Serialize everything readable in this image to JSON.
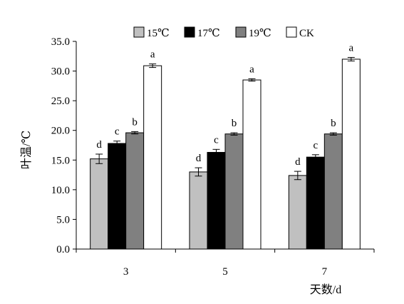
{
  "chart_data": {
    "type": "bar",
    "categories": [
      "3",
      "5",
      "7"
    ],
    "xlabel": "天数/d",
    "ylabel": "叶温/℃",
    "ylim": [
      0,
      35
    ],
    "yticks": [
      "0.0",
      "5.0",
      "10.0",
      "15.0",
      "20.0",
      "25.0",
      "30.0",
      "35.0"
    ],
    "grid": false,
    "legend_position": "top",
    "series": [
      {
        "name": "15℃",
        "color": "#c0c0c0",
        "values": [
          15.2,
          13.0,
          12.4
        ],
        "errors": [
          0.8,
          0.7,
          0.7
        ],
        "letters": [
          "d",
          "d",
          "d"
        ]
      },
      {
        "name": "17℃",
        "color": "#000000",
        "values": [
          17.8,
          16.3,
          15.5
        ],
        "errors": [
          0.4,
          0.5,
          0.4
        ],
        "letters": [
          "c",
          "c",
          "c"
        ]
      },
      {
        "name": "19℃",
        "color": "#808080",
        "values": [
          19.6,
          19.4,
          19.4
        ],
        "errors": [
          0.2,
          0.2,
          0.2
        ],
        "letters": [
          "b",
          "b",
          "b"
        ]
      },
      {
        "name": "CK",
        "color": "#ffffff",
        "values": [
          30.9,
          28.5,
          32.0
        ],
        "errors": [
          0.3,
          0.2,
          0.3
        ],
        "letters": [
          "a",
          "a",
          "a"
        ]
      }
    ]
  }
}
